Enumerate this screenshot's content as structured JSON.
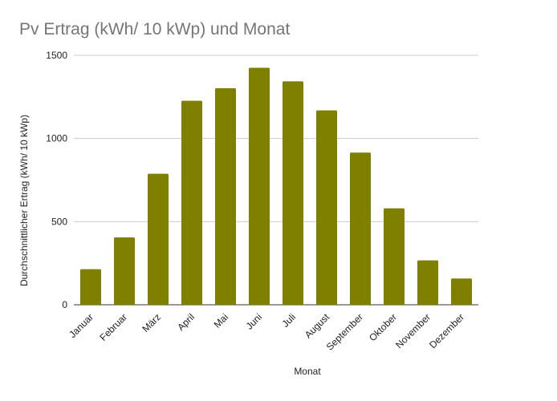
{
  "chart_data": {
    "type": "bar",
    "title": "Pv Ertrag (kWh/ 10 kWp) und Monat",
    "xlabel": "Monat",
    "ylabel": "Durchschnittlicher Ertrag (kWh/ 10 kWp)",
    "categories": [
      "Januar",
      "Februar",
      "März",
      "April",
      "Mai",
      "Juni",
      "Juli",
      "August",
      "September",
      "Oktober",
      "November",
      "Dezember"
    ],
    "values": [
      214,
      405,
      788,
      1227,
      1302,
      1425,
      1344,
      1169,
      915,
      580,
      267,
      158
    ],
    "ylim": [
      0,
      1500
    ],
    "yticks": [
      "0",
      "500",
      "1000",
      "1500"
    ],
    "grid": true,
    "legend": "none",
    "bar_color": "#808000"
  }
}
